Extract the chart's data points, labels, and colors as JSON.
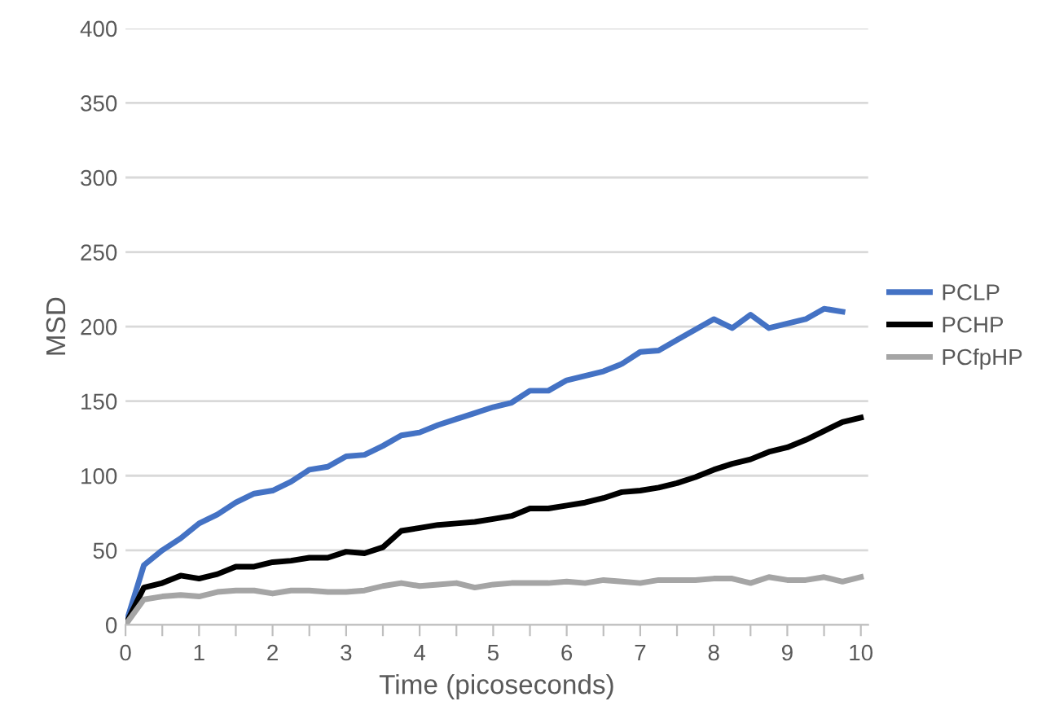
{
  "chart_data": {
    "type": "line",
    "xlabel": "Time (picoseconds)",
    "ylabel": "MSD",
    "xlim": [
      0,
      10.1
    ],
    "xticks": [
      0,
      {
        "value": 0.5,
        "label": null
      },
      1,
      {
        "value": 1.5,
        "label": null
      },
      2,
      {
        "value": 2.5,
        "label": null
      },
      3,
      {
        "value": 3.5,
        "label": null
      },
      4,
      {
        "value": 4.5,
        "label": null
      },
      5,
      {
        "value": 5.5,
        "label": null
      },
      6,
      {
        "value": 6.5,
        "label": null
      },
      7,
      {
        "value": 7.5,
        "label": null
      },
      8,
      {
        "value": 8.5,
        "label": null
      },
      9,
      {
        "value": 9.5,
        "label": null
      },
      10
    ],
    "ylim": [
      0,
      400
    ],
    "yticks": [
      0,
      50,
      100,
      150,
      200,
      250,
      300,
      350,
      400
    ],
    "grid": "y",
    "legend": "right",
    "marker": "none",
    "line_style": "solid",
    "x": [
      0,
      0.25,
      0.5,
      0.75,
      1,
      1.25,
      1.5,
      1.75,
      2,
      2.25,
      2.5,
      2.75,
      3,
      3.25,
      3.5,
      3.75,
      4,
      4.25,
      4.5,
      4.75,
      5,
      5.25,
      5.5,
      5.75,
      6,
      6.25,
      6.5,
      6.75,
      7,
      7.25,
      7.5,
      7.75,
      8,
      8.25,
      8.5,
      8.75,
      9,
      9.25,
      9.5,
      9.75,
      10
    ],
    "series": [
      {
        "name": "PCLP",
        "color": "#4472c4",
        "values": [
          0,
          40,
          50,
          58,
          68,
          74,
          82,
          88,
          90,
          96,
          104,
          106,
          113,
          114,
          120,
          127,
          129,
          134,
          138,
          142,
          146,
          149,
          157,
          157,
          164,
          167,
          170,
          175,
          183,
          184,
          191,
          198,
          205,
          199,
          208,
          199,
          202,
          205,
          212,
          210,
          null
        ]
      },
      {
        "name": "PCHP",
        "color": "#000000",
        "values": [
          0,
          25,
          28,
          33,
          31,
          34,
          39,
          39,
          42,
          43,
          45,
          45,
          49,
          48,
          52,
          63,
          65,
          67,
          68,
          69,
          71,
          73,
          78,
          78,
          80,
          82,
          85,
          89,
          90,
          92,
          95,
          99,
          104,
          108,
          111,
          116,
          119,
          124,
          130,
          136,
          139
        ]
      },
      {
        "name": "PCfpHP",
        "color": "#a5a5a5",
        "values": [
          0,
          17,
          19,
          20,
          19,
          22,
          23,
          23,
          21,
          23,
          23,
          22,
          22,
          23,
          26,
          28,
          26,
          27,
          28,
          25,
          27,
          28,
          28,
          28,
          29,
          28,
          30,
          29,
          28,
          30,
          30,
          30,
          31,
          31,
          28,
          32,
          30,
          30,
          32,
          29,
          32
        ]
      }
    ]
  }
}
